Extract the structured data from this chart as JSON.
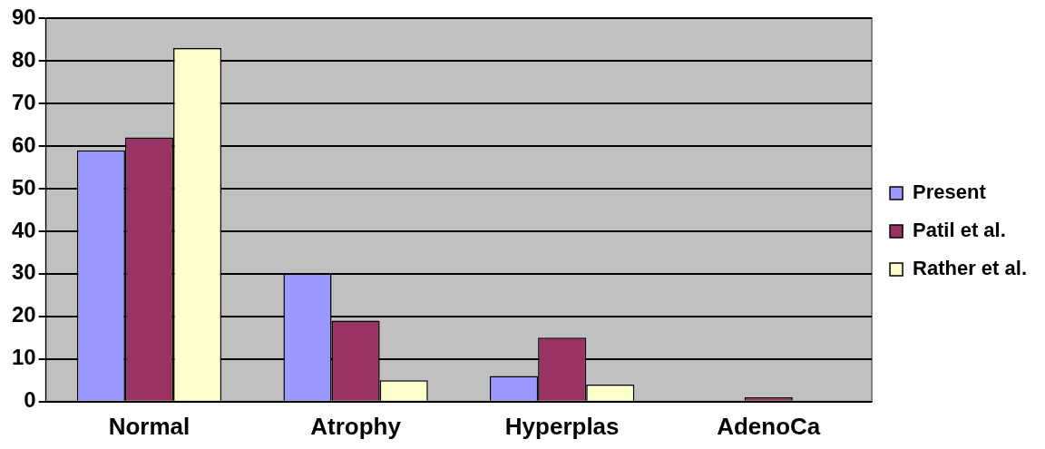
{
  "chart_data": {
    "type": "bar",
    "categories": [
      "Normal",
      "Atrophy",
      "Hyperplas",
      "AdenoCa"
    ],
    "series": [
      {
        "name": "Present",
        "color": "#9999ff",
        "values": [
          59,
          30,
          6,
          0
        ]
      },
      {
        "name": "Patil et al.",
        "color": "#993366",
        "values": [
          62,
          19,
          15,
          1
        ]
      },
      {
        "name": "Rather et al.",
        "color": "#ffffcc",
        "values": [
          83,
          5,
          4,
          0
        ]
      }
    ],
    "ylim": [
      0,
      90
    ],
    "yticks": [
      0,
      10,
      20,
      30,
      40,
      50,
      60,
      70,
      80,
      90
    ],
    "grid": "y",
    "legend": "right"
  }
}
